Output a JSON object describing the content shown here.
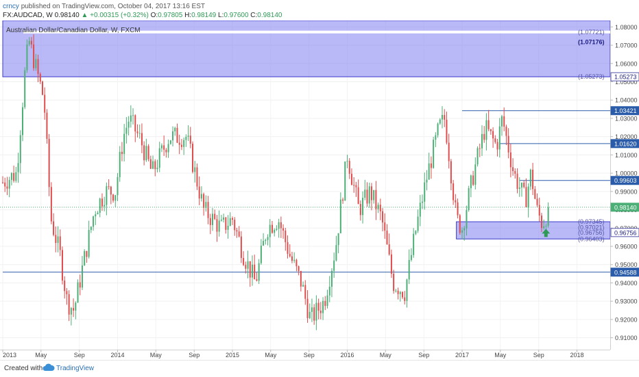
{
  "header": {
    "user": "crncy",
    "published": "published on TradingView.com, October 04, 2017 13:16 EST",
    "symbol": "FX:AUDCAD, W",
    "last": "0.98140",
    "change": "▲ +0.00315 (+0.32%)",
    "o_label": "O:",
    "o": "0.97805",
    "h_label": "H:",
    "h": "0.98149",
    "l_label": "L:",
    "l": "0.97600",
    "c_label": "C:",
    "c": "0.98140"
  },
  "footer": {
    "created": "Created with",
    "brand": "TradingView",
    "logo_icon": "tradingview-cloud-icon"
  },
  "colors": {
    "up": "#4caf76",
    "down": "#e04b4b",
    "zone": "#8080f0",
    "line": "#2a5caa",
    "last_price": "#4caf76"
  },
  "chart_data": {
    "type": "candlestick",
    "title": "Australian Dollar/Canadian Dollar, W, FXCM",
    "ylim": [
      0.9035,
      1.0835
    ],
    "y_ticks": [
      "1.08000",
      "1.07000",
      "1.06000",
      "1.05000",
      "1.04000",
      "1.03000",
      "1.02000",
      "1.01000",
      "1.00000",
      "0.99000",
      "0.98000",
      "0.97000",
      "0.96000",
      "0.95000",
      "0.94000",
      "0.93000",
      "0.92000",
      "0.91000"
    ],
    "x_ticks": [
      {
        "label": "2013",
        "t": 0
      },
      {
        "label": "May",
        "t": 0.333
      },
      {
        "label": "Sep",
        "t": 0.667
      },
      {
        "label": "2014",
        "t": 1
      },
      {
        "label": "May",
        "t": 1.333
      },
      {
        "label": "Sep",
        "t": 1.667
      },
      {
        "label": "2015",
        "t": 2
      },
      {
        "label": "May",
        "t": 2.333
      },
      {
        "label": "Sep",
        "t": 2.667
      },
      {
        "label": "2016",
        "t": 3
      },
      {
        "label": "May",
        "t": 3.333
      },
      {
        "label": "Sep",
        "t": 3.667
      },
      {
        "label": "2017",
        "t": 4
      },
      {
        "label": "May",
        "t": 4.333
      },
      {
        "label": "Sep",
        "t": 4.667
      },
      {
        "label": "2018",
        "t": 5
      }
    ],
    "key_path": [
      [
        0,
        0.995
      ],
      [
        0.12,
        1.0
      ],
      [
        0.2,
        1.06
      ],
      [
        0.23,
        1.072
      ],
      [
        0.3,
        1.055
      ],
      [
        0.36,
        1.04
      ],
      [
        0.42,
        0.975
      ],
      [
        0.5,
        0.955
      ],
      [
        0.56,
        0.93
      ],
      [
        0.62,
        0.925
      ],
      [
        0.7,
        0.95
      ],
      [
        0.8,
        0.98
      ],
      [
        0.9,
        0.99
      ],
      [
        0.98,
        0.99
      ],
      [
        1.05,
        1.02
      ],
      [
        1.1,
        1.03
      ],
      [
        1.2,
        1.018
      ],
      [
        1.3,
        1.0
      ],
      [
        1.45,
        1.02
      ],
      [
        1.6,
        1.02
      ],
      [
        1.75,
        0.98
      ],
      [
        1.9,
        0.97
      ],
      [
        2.0,
        0.975
      ],
      [
        2.1,
        0.955
      ],
      [
        2.2,
        0.94
      ],
      [
        2.3,
        0.97
      ],
      [
        2.4,
        0.975
      ],
      [
        2.5,
        0.955
      ],
      [
        2.6,
        0.94
      ],
      [
        2.68,
        0.92
      ],
      [
        2.8,
        0.93
      ],
      [
        2.9,
        0.96
      ],
      [
        3.0,
        1.01
      ],
      [
        3.1,
        0.98
      ],
      [
        3.2,
        0.99
      ],
      [
        3.3,
        0.975
      ],
      [
        3.4,
        0.94
      ],
      [
        3.5,
        0.935
      ],
      [
        3.6,
        0.97
      ],
      [
        3.7,
        1.0
      ],
      [
        3.8,
        1.025
      ],
      [
        3.85,
        1.03
      ],
      [
        3.95,
        0.975
      ],
      [
        4.0,
        0.97
      ],
      [
        4.1,
        1.0
      ],
      [
        4.2,
        1.025
      ],
      [
        4.3,
        1.015
      ],
      [
        4.35,
        1.03
      ],
      [
        4.45,
        1.0
      ],
      [
        4.55,
        0.985
      ],
      [
        4.6,
        1.0
      ],
      [
        4.65,
        0.98
      ],
      [
        4.7,
        0.972
      ],
      [
        4.75,
        0.98
      ]
    ],
    "last_price": 0.9814,
    "h_lines": [
      {
        "value": 1.0342,
        "label": "1.03421",
        "x_start": 4.0
      },
      {
        "value": 1.0162,
        "label": "1.01620",
        "x_start": 4.33
      },
      {
        "value": 0.99603,
        "label": "0.99603",
        "x_start": 4.5
      },
      {
        "value": 0.94588,
        "label": "0.94588",
        "x_start": 0
      }
    ],
    "zones": [
      {
        "top": 1.0835,
        "bottom": 1.05273,
        "x_start": 0,
        "x_end": 5,
        "labels": [
          "1.07721",
          "1.07176",
          "1.05273"
        ],
        "highlight_label": "1.07176",
        "side_label": "1.05273"
      },
      {
        "top": 0.97345,
        "bottom": 0.96403,
        "x_start": 3.95,
        "x_end": 5,
        "labels": [
          "0.97345",
          "0.97021",
          "0.96756",
          "0.96403"
        ],
        "side_label": "0.96756"
      }
    ],
    "arrow": {
      "t": 4.73,
      "value": 0.967,
      "icon": "arrow-up-icon"
    }
  }
}
